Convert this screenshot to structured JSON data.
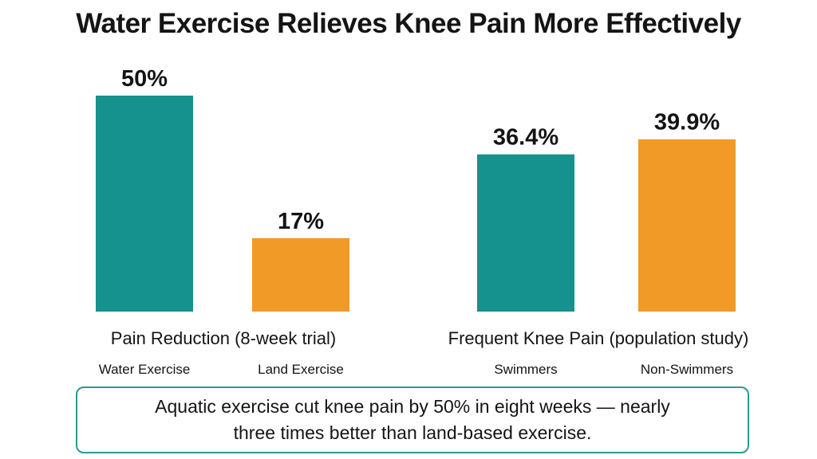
{
  "title": "Water Exercise Relieves Knee Pain More Effectively",
  "colors": {
    "water": "#15918e",
    "land": "#f29a27"
  },
  "chart_data": [
    {
      "type": "bar",
      "title": "Pain Reduction (8-week trial)",
      "categories": [
        "Water Exercise",
        "Land Exercise"
      ],
      "values": [
        50,
        17
      ],
      "value_labels": [
        "50%",
        "17%"
      ],
      "unit": "%",
      "ylim": [
        0,
        50
      ],
      "grid": false
    },
    {
      "type": "bar",
      "title": "Frequent Knee Pain (population study)",
      "categories": [
        "Swimmers",
        "Non-Swimmers"
      ],
      "values": [
        36.4,
        39.9
      ],
      "value_labels": [
        "36.4%",
        "39.9%"
      ],
      "unit": "%",
      "ylim": [
        0,
        50
      ],
      "grid": false
    }
  ],
  "callout": {
    "text": "Aquatic exercise cut knee pain by 50% in eight weeks — nearly three times better than land-based exercise."
  }
}
